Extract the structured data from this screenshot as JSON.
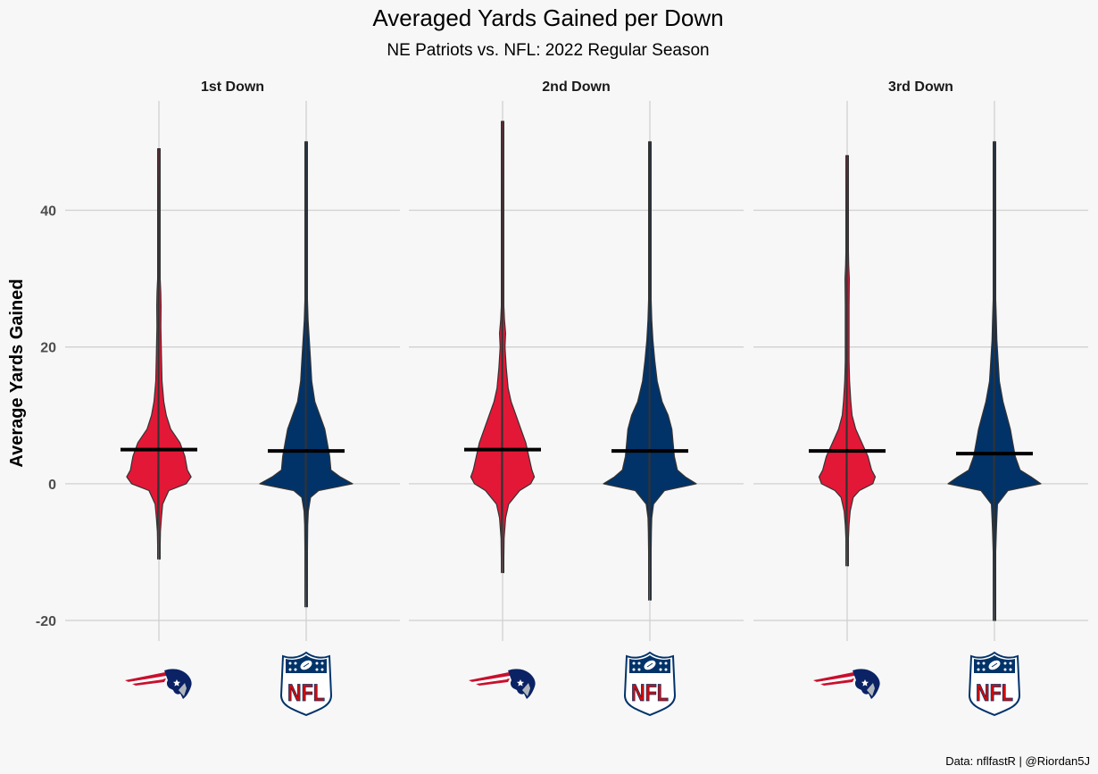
{
  "chart_data": {
    "type": "violin",
    "title": "Averaged Yards Gained per Down",
    "subtitle": "NE Patriots vs. NFL: 2022 Regular Season",
    "ylabel": "Average Yards Gained",
    "caption": "Data: nflfastR | @Riordan5J",
    "ylim": [
      -23,
      56
    ],
    "yticks": [
      -20,
      0,
      20,
      40
    ],
    "grid": true,
    "legend": "none",
    "groups": [
      {
        "key": "ne",
        "icon": "patriots-logo-icon",
        "color": "#e31837"
      },
      {
        "key": "nfl",
        "icon": "nfl-shield-logo-icon",
        "color": "#013369",
        "shield_text": "NFL"
      }
    ],
    "panels": [
      {
        "label": "1st Down",
        "violins": [
          {
            "group": "ne",
            "mean": 5.0,
            "profile": [
              [
                -11,
                0.3
              ],
              [
                -9,
                1.2
              ],
              [
                -7,
                2.5
              ],
              [
                -5,
                4
              ],
              [
                -3,
                6
              ],
              [
                -1,
                16
              ],
              [
                0,
                44
              ],
              [
                1,
                52
              ],
              [
                2,
                46
              ],
              [
                4,
                42
              ],
              [
                6,
                34
              ],
              [
                8,
                19
              ],
              [
                10,
                12
              ],
              [
                12,
                8
              ],
              [
                15,
                5
              ],
              [
                19,
                4
              ],
              [
                23,
                3.2
              ],
              [
                26,
                3.5
              ],
              [
                28,
                3
              ],
              [
                30,
                1.5
              ],
              [
                35,
                1
              ],
              [
                40,
                0.8
              ],
              [
                45,
                0.8
              ],
              [
                49,
                0.6
              ]
            ]
          },
          {
            "group": "nfl",
            "mean": 4.8,
            "profile": [
              [
                -18,
                0.3
              ],
              [
                -14,
                0.7
              ],
              [
                -10,
                1.2
              ],
              [
                -6,
                2.5
              ],
              [
                -4,
                3.5
              ],
              [
                -2,
                7
              ],
              [
                -1,
                20
              ],
              [
                0,
                75
              ],
              [
                1,
                55
              ],
              [
                2,
                40
              ],
              [
                4,
                38
              ],
              [
                6,
                34
              ],
              [
                8,
                30
              ],
              [
                10,
                22
              ],
              [
                12,
                14
              ],
              [
                15,
                9
              ],
              [
                18,
                7
              ],
              [
                21,
                5
              ],
              [
                24,
                3
              ],
              [
                27,
                1.5
              ],
              [
                30,
                1
              ],
              [
                35,
                1
              ],
              [
                40,
                1
              ],
              [
                45,
                0.8
              ],
              [
                50,
                0.6
              ]
            ]
          }
        ]
      },
      {
        "label": "2nd Down",
        "violins": [
          {
            "group": "ne",
            "mean": 5.0,
            "profile": [
              [
                -13,
                0.3
              ],
              [
                -11,
                1
              ],
              [
                -8,
                2.5
              ],
              [
                -5,
                5
              ],
              [
                -3,
                10
              ],
              [
                -1,
                28
              ],
              [
                0,
                46
              ],
              [
                1,
                52
              ],
              [
                2,
                48
              ],
              [
                4,
                43
              ],
              [
                6,
                38
              ],
              [
                8,
                30
              ],
              [
                10,
                22
              ],
              [
                12,
                14
              ],
              [
                14,
                9
              ],
              [
                17,
                6
              ],
              [
                20,
                4
              ],
              [
                22,
                5
              ],
              [
                24,
                3
              ],
              [
                26,
                1.5
              ],
              [
                30,
                1
              ],
              [
                35,
                0.9
              ],
              [
                40,
                0.9
              ],
              [
                45,
                0.9
              ],
              [
                53,
                0.6
              ]
            ]
          },
          {
            "group": "nfl",
            "mean": 4.8,
            "profile": [
              [
                -17,
                0.3
              ],
              [
                -13,
                0.8
              ],
              [
                -10,
                1.5
              ],
              [
                -7,
                2.5
              ],
              [
                -5,
                3
              ],
              [
                -3,
                6
              ],
              [
                -1,
                24
              ],
              [
                0,
                76
              ],
              [
                1,
                58
              ],
              [
                2,
                45
              ],
              [
                4,
                40
              ],
              [
                6,
                38
              ],
              [
                8,
                36
              ],
              [
                10,
                30
              ],
              [
                12,
                20
              ],
              [
                15,
                12
              ],
              [
                18,
                8
              ],
              [
                21,
                5
              ],
              [
                24,
                3
              ],
              [
                27,
                1.5
              ],
              [
                30,
                1
              ],
              [
                35,
                1
              ],
              [
                40,
                1
              ],
              [
                45,
                0.8
              ],
              [
                50,
                0.6
              ]
            ]
          }
        ]
      },
      {
        "label": "3rd Down",
        "violins": [
          {
            "group": "ne",
            "mean": 4.8,
            "profile": [
              [
                -12,
                0.3
              ],
              [
                -10,
                0.8
              ],
              [
                -8,
                1.8
              ],
              [
                -6,
                3
              ],
              [
                -4,
                5
              ],
              [
                -2,
                10
              ],
              [
                -1,
                20
              ],
              [
                0,
                42
              ],
              [
                1,
                46
              ],
              [
                2,
                40
              ],
              [
                4,
                34
              ],
              [
                6,
                24
              ],
              [
                8,
                14
              ],
              [
                10,
                8
              ],
              [
                12,
                6
              ],
              [
                15,
                4
              ],
              [
                18,
                3
              ],
              [
                22,
                3
              ],
              [
                26,
                3
              ],
              [
                30,
                3.5
              ],
              [
                32,
                2.5
              ],
              [
                34,
                1.5
              ],
              [
                38,
                1
              ],
              [
                42,
                0.8
              ],
              [
                48,
                0.6
              ]
            ]
          },
          {
            "group": "nfl",
            "mean": 4.4,
            "profile": [
              [
                -20,
                0.3
              ],
              [
                -17,
                0.7
              ],
              [
                -14,
                1.2
              ],
              [
                -10,
                2
              ],
              [
                -7,
                3
              ],
              [
                -5,
                4
              ],
              [
                -3,
                5
              ],
              [
                -1,
                22
              ],
              [
                0,
                76
              ],
              [
                1,
                60
              ],
              [
                2,
                42
              ],
              [
                4,
                34
              ],
              [
                6,
                30
              ],
              [
                8,
                26
              ],
              [
                10,
                20
              ],
              [
                12,
                14
              ],
              [
                15,
                8
              ],
              [
                18,
                6
              ],
              [
                21,
                4
              ],
              [
                24,
                3
              ],
              [
                27,
                1.5
              ],
              [
                30,
                1
              ],
              [
                35,
                1
              ],
              [
                40,
                1
              ],
              [
                45,
                0.8
              ],
              [
                50,
                0.6
              ]
            ]
          }
        ]
      }
    ]
  }
}
